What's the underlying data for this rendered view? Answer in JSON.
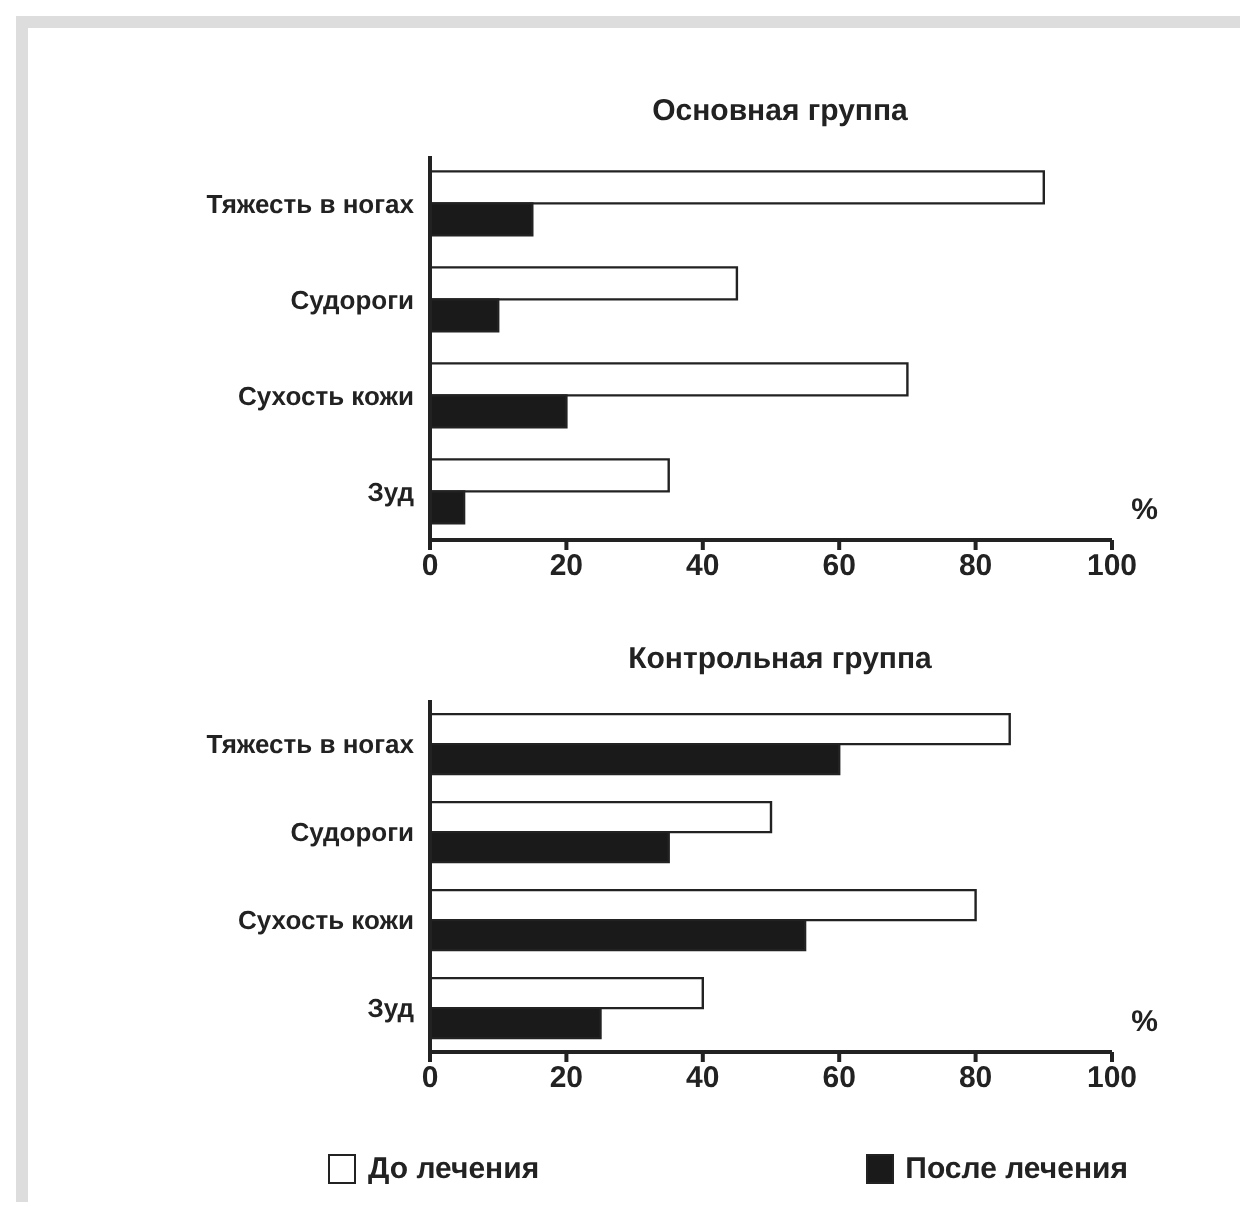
{
  "chart_data": [
    {
      "type": "bar",
      "orientation": "horizontal",
      "title": "Основная группа",
      "xlabel": "%",
      "categories": [
        "Тяжесть в ногах",
        "Судороги",
        "Сухость кожи",
        "Зуд"
      ],
      "series": [
        {
          "color": "#ffffff",
          "values": [
            90,
            45,
            70,
            35
          ]
        },
        {
          "color": "#1a1a1a",
          "values": [
            15,
            10,
            20,
            5
          ]
        }
      ],
      "xlim": [
        0,
        100
      ],
      "xticks": [
        0,
        20,
        40,
        60,
        80,
        100
      ],
      "grid": false,
      "legend": false
    },
    {
      "type": "bar",
      "orientation": "horizontal",
      "title": "Контрольная группа",
      "xlabel": "%",
      "categories": [
        "Тяжесть в ногах",
        "Судороги",
        "Сухость кожи",
        "Зуд"
      ],
      "series": [
        {
          "name": "До лечения",
          "color": "#ffffff",
          "values": [
            85,
            50,
            80,
            40
          ]
        },
        {
          "name": "После лечения",
          "color": "#1a1a1a",
          "values": [
            60,
            35,
            55,
            25
          ]
        }
      ],
      "xlim": [
        0,
        100
      ],
      "xticks": [
        0,
        20,
        40,
        60,
        80,
        100
      ],
      "grid": false,
      "legend": "bottom"
    }
  ]
}
